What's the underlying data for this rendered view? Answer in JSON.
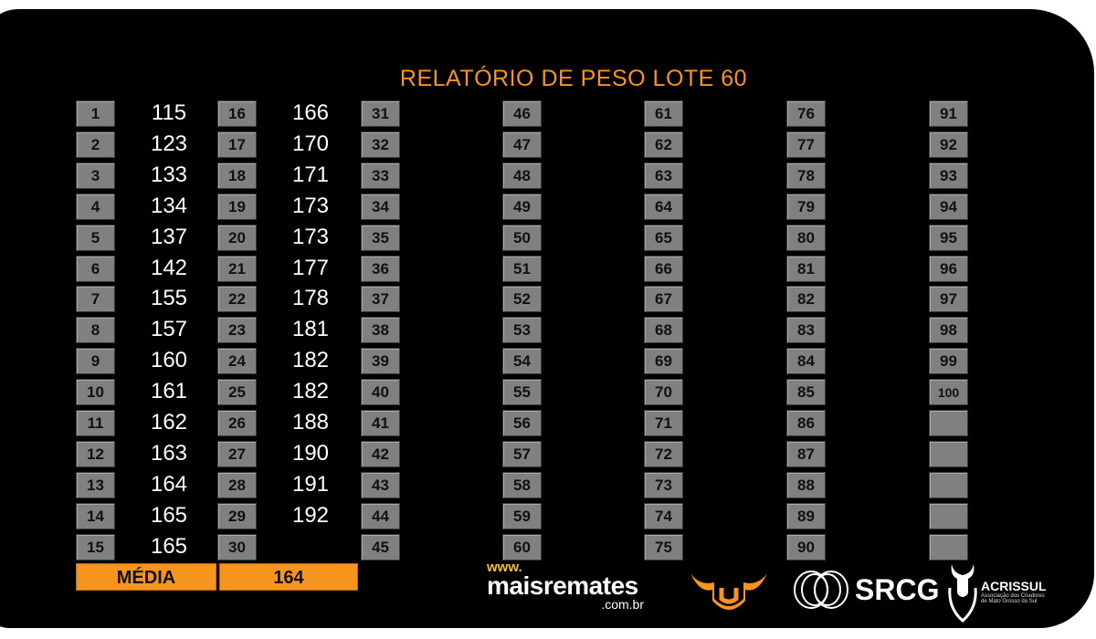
{
  "title": "RELATÓRIO DE PESO LOTE 60",
  "columns": [
    {
      "numbers": [
        "1",
        "2",
        "3",
        "4",
        "5",
        "6",
        "7",
        "8",
        "9",
        "10",
        "11",
        "12",
        "13",
        "14",
        "15"
      ],
      "values": [
        "115",
        "123",
        "133",
        "134",
        "137",
        "142",
        "155",
        "157",
        "160",
        "161",
        "162",
        "163",
        "164",
        "165",
        "165"
      ]
    },
    {
      "numbers": [
        "16",
        "17",
        "18",
        "19",
        "20",
        "21",
        "22",
        "23",
        "24",
        "25",
        "26",
        "27",
        "28",
        "29",
        "30"
      ],
      "values": [
        "166",
        "170",
        "171",
        "173",
        "173",
        "177",
        "178",
        "181",
        "182",
        "182",
        "188",
        "190",
        "191",
        "192",
        ""
      ]
    },
    {
      "numbers": [
        "31",
        "32",
        "33",
        "34",
        "35",
        "36",
        "37",
        "38",
        "39",
        "40",
        "41",
        "42",
        "43",
        "44",
        "45"
      ],
      "values": []
    },
    {
      "numbers": [
        "46",
        "47",
        "48",
        "49",
        "50",
        "51",
        "52",
        "53",
        "54",
        "55",
        "56",
        "57",
        "58",
        "59",
        "60"
      ],
      "values": []
    },
    {
      "numbers": [
        "61",
        "62",
        "63",
        "64",
        "65",
        "66",
        "67",
        "68",
        "69",
        "70",
        "71",
        "72",
        "73",
        "74",
        "75"
      ],
      "values": []
    },
    {
      "numbers": [
        "76",
        "77",
        "78",
        "79",
        "80",
        "81",
        "82",
        "83",
        "84",
        "85",
        "86",
        "87",
        "88",
        "89",
        "90"
      ],
      "values": []
    },
    {
      "numbers": [
        "91",
        "92",
        "93",
        "94",
        "95",
        "96",
        "97",
        "98",
        "99",
        "100",
        "",
        "",
        "",
        "",
        ""
      ],
      "values": []
    }
  ],
  "media": {
    "label": "MÉDIA",
    "value": "164"
  },
  "logos": {
    "maisremates": {
      "www": "www.",
      "name": "maisremates",
      "domain": ".com.br"
    },
    "srcg": "SRCG",
    "acrissul": {
      "name": "ACRISSUL",
      "subtitle1": "Associação dos Criadores",
      "subtitle2": "de Mato Grosso do Sul"
    }
  },
  "colors": {
    "accent": "#f7941d",
    "cell": "#808080",
    "background": "#000000"
  }
}
